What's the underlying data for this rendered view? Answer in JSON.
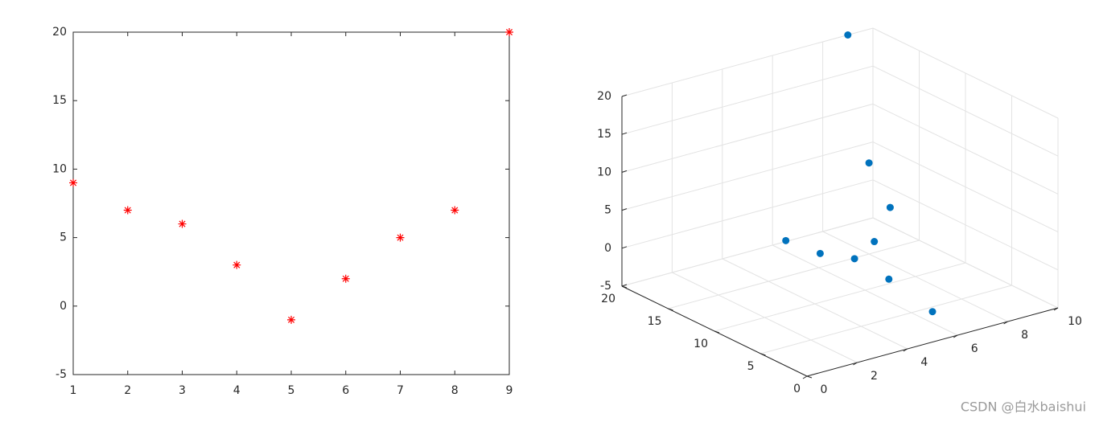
{
  "chart_data": [
    {
      "type": "scatter",
      "marker": "asterisk",
      "color": "#ff0000",
      "x": [
        1,
        2,
        3,
        4,
        5,
        6,
        7,
        8,
        9
      ],
      "values": [
        9,
        7,
        6,
        3,
        -1,
        2,
        5,
        7,
        20
      ],
      "xlim": [
        1,
        9
      ],
      "ylim": [
        -5,
        20
      ],
      "xticks": [
        1,
        2,
        3,
        4,
        5,
        6,
        7,
        8,
        9
      ],
      "yticks": [
        -5,
        0,
        5,
        10,
        15,
        20
      ],
      "grid": false
    },
    {
      "type": "scatter3d",
      "color": "#0072bd",
      "x": [
        1,
        2,
        3,
        4,
        5,
        6,
        7,
        8,
        9
      ],
      "y": [
        5,
        4,
        3,
        2,
        0,
        9,
        10,
        15,
        20
      ],
      "z": [
        9,
        7,
        6,
        3,
        -1,
        2,
        5,
        7,
        20
      ],
      "xlim": [
        0,
        10
      ],
      "ylim": [
        0,
        20
      ],
      "zlim": [
        -5,
        20
      ],
      "xticks": [
        0,
        2,
        4,
        6,
        8,
        10
      ],
      "yticks": [
        0,
        5,
        10,
        15,
        20
      ],
      "zticks": [
        -5,
        0,
        5,
        10,
        15,
        20
      ],
      "grid": true
    }
  ],
  "watermark": "CSDN @白水baishui"
}
